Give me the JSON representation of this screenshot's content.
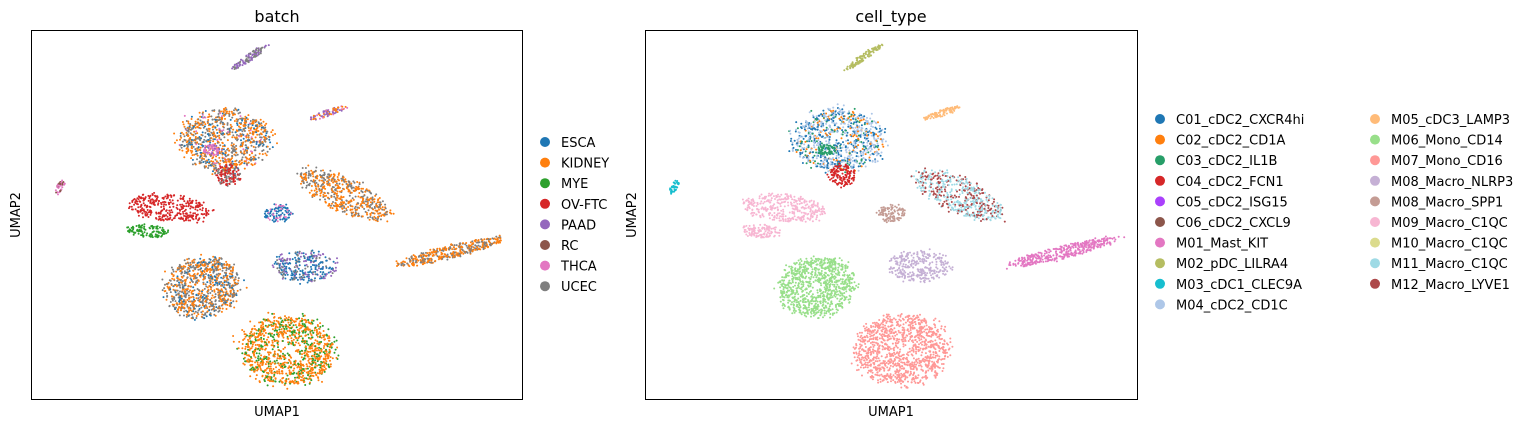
{
  "chart_data": [
    {
      "type": "scatter",
      "title": "batch",
      "xlabel": "UMAP1",
      "ylabel": "UMAP2",
      "legend_placement": "right",
      "categories": [
        {
          "name": "ESCA",
          "color": "#1f77b4"
        },
        {
          "name": "KIDNEY",
          "color": "#ff7f0e"
        },
        {
          "name": "MYE",
          "color": "#2ca02c"
        },
        {
          "name": "OV-FTC",
          "color": "#d62728"
        },
        {
          "name": "PAAD",
          "color": "#9467bd"
        },
        {
          "name": "RC",
          "color": "#8c564b"
        },
        {
          "name": "THCA",
          "color": "#e377c2"
        },
        {
          "name": "UCEC",
          "color": "#7f7f7f"
        }
      ]
    },
    {
      "type": "scatter",
      "title": "cell_type",
      "xlabel": "UMAP1",
      "ylabel": "UMAP2",
      "legend_placement": "right",
      "categories": [
        {
          "name": "C01_cDC2_CXCR4hi",
          "color": "#1f77b4"
        },
        {
          "name": "C02_cDC2_CD1A",
          "color": "#ff7f0e"
        },
        {
          "name": "C03_cDC2_IL1B",
          "color": "#279e68"
        },
        {
          "name": "C04_cDC2_FCN1",
          "color": "#d62728"
        },
        {
          "name": "C05_cDC2_ISG15",
          "color": "#aa40fc"
        },
        {
          "name": "C06_cDC2_CXCL9",
          "color": "#8c564b"
        },
        {
          "name": "M01_Mast_KIT",
          "color": "#e377c2"
        },
        {
          "name": "M02_pDC_LILRA4",
          "color": "#b5bd61"
        },
        {
          "name": "M03_cDC1_CLEC9A",
          "color": "#17becf"
        },
        {
          "name": "M04_cDC2_CD1C",
          "color": "#aec7e8"
        },
        {
          "name": "M05_cDC3_LAMP3",
          "color": "#ffbb78"
        },
        {
          "name": "M06_Mono_CD14",
          "color": "#98df8a"
        },
        {
          "name": "M07_Mono_CD16",
          "color": "#ff9896"
        },
        {
          "name": "M08_Macro_NLRP3",
          "color": "#c5b0d5"
        },
        {
          "name": "M08_Macro_SPP1",
          "color": "#c49c94"
        },
        {
          "name": "M09_Macro_C1QC",
          "color": "#f7b6d2"
        },
        {
          "name": "M10_Macro_C1QC",
          "color": "#dbdb8d"
        },
        {
          "name": "M11_Macro_C1QC",
          "color": "#9edae5"
        },
        {
          "name": "M12_Macro_LYVE1",
          "color": "#ad494a"
        }
      ]
    }
  ]
}
